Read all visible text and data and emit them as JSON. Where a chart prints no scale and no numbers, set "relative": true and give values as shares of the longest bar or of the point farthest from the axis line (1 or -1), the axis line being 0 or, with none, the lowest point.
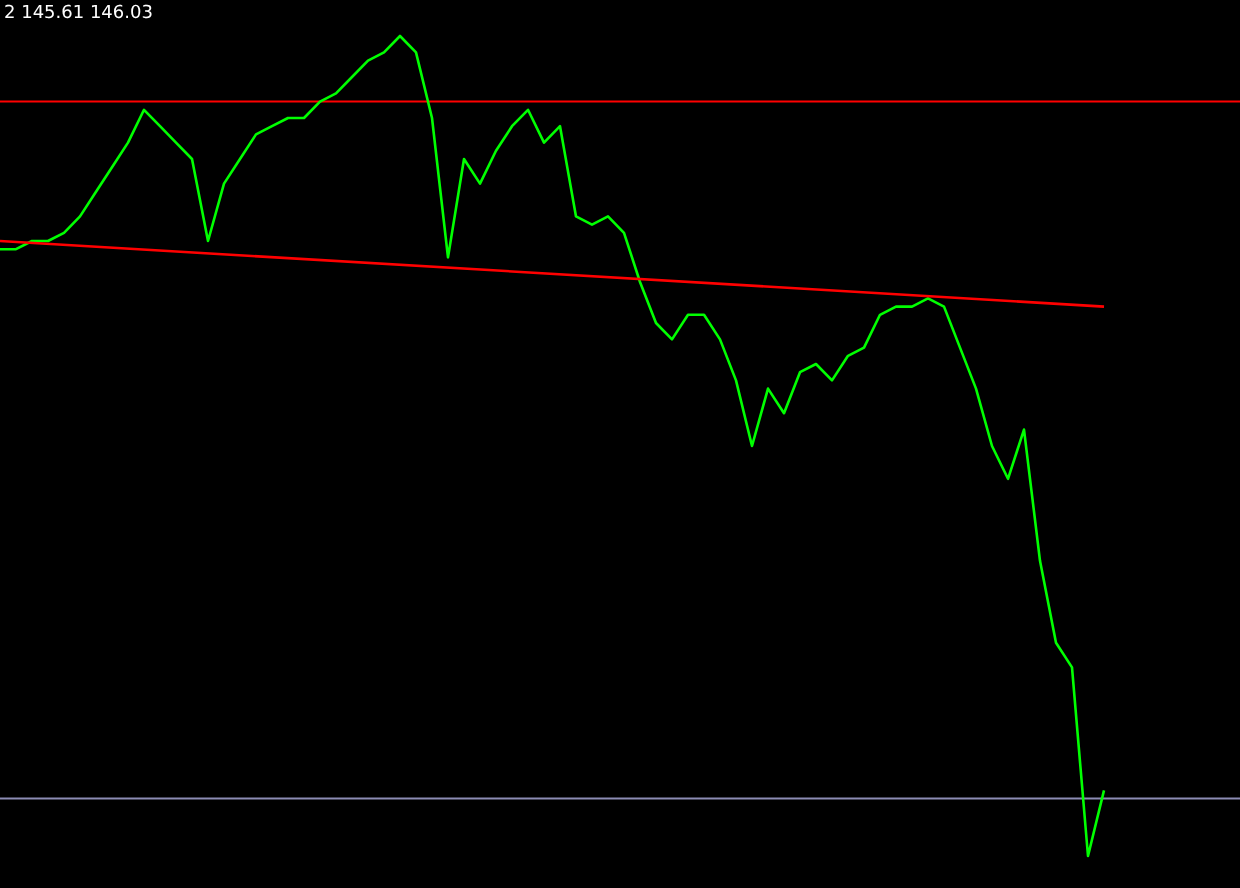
{
  "chart_data": {
    "type": "line",
    "relative": true,
    "categories": [
      null,
      null,
      null,
      null,
      null,
      null,
      null,
      null,
      null,
      null,
      null,
      null,
      null,
      null,
      null,
      null,
      null,
      null,
      null,
      null,
      null,
      null,
      null,
      null,
      null,
      null,
      null,
      null,
      null,
      null,
      null,
      null,
      null,
      null,
      null,
      null,
      null,
      null,
      null,
      null,
      null,
      null,
      null,
      null,
      null,
      null,
      null,
      null,
      null,
      null,
      null,
      null,
      null,
      null,
      null,
      null,
      null,
      null,
      null,
      null,
      null,
      null,
      null,
      null,
      null,
      null,
      null,
      null,
      null,
      null
    ],
    "series": [
      {
        "color": "#00ff00",
        "values": [
          0.74,
          0.74,
          0.75,
          0.75,
          0.76,
          0.78,
          0.81,
          0.84,
          0.87,
          0.91,
          0.89,
          0.87,
          0.85,
          0.75,
          0.82,
          0.85,
          0.88,
          0.89,
          0.9,
          0.9,
          0.92,
          0.93,
          0.95,
          0.97,
          0.98,
          1.0,
          0.98,
          0.9,
          0.73,
          0.85,
          0.82,
          0.86,
          0.89,
          0.91,
          0.87,
          0.89,
          0.78,
          0.77,
          0.78,
          0.76,
          0.7,
          0.65,
          0.63,
          0.66,
          0.66,
          0.63,
          0.58,
          0.5,
          0.57,
          0.54,
          0.59,
          0.6,
          0.58,
          0.61,
          0.62,
          0.66,
          0.67,
          0.67,
          0.68,
          0.67,
          0.62,
          0.57,
          0.5,
          0.46,
          0.52,
          0.36,
          0.26,
          0.23,
          0.0,
          0.08
        ]
      },
      {
        "type": "line",
        "color": "#ff0000",
        "values": [
          0.75,
          null,
          null,
          null,
          null,
          null,
          null,
          null,
          null,
          null,
          null,
          null,
          null,
          null,
          null,
          null,
          null,
          null,
          null,
          null,
          null,
          null,
          null,
          null,
          null,
          null,
          null,
          null,
          null,
          null,
          null,
          null,
          null,
          null,
          null,
          null,
          null,
          null,
          null,
          null,
          null,
          null,
          null,
          null,
          null,
          null,
          null,
          null,
          null,
          null,
          null,
          null,
          null,
          null,
          null,
          null,
          null,
          null,
          null,
          null,
          null,
          null,
          null,
          null,
          null,
          null,
          null,
          null,
          null,
          0.67
        ]
      }
    ],
    "ref_lines": [
      {
        "axis": "y",
        "value": 0.92,
        "color": "#ff0000"
      },
      {
        "axis": "y",
        "value": 0.07,
        "color": "#8c8cb4"
      }
    ],
    "annotations": [
      "2 145.61 146.03"
    ],
    "marker": "none"
  }
}
